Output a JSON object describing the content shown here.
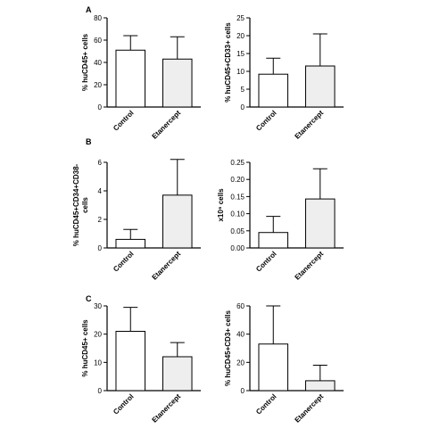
{
  "panel_letters": [
    "A",
    "B",
    "C"
  ],
  "chart_data": [
    {
      "type": "bar",
      "panel": "A",
      "categories": [
        "Control",
        "Etanercept"
      ],
      "values": [
        51,
        43
      ],
      "errors": [
        13,
        20
      ],
      "ylabel": "% huCD45+ cells",
      "ylim": [
        0,
        80
      ],
      "yticks": [
        "0",
        "20",
        "40",
        "60",
        "80"
      ],
      "fills": [
        "#ffffff",
        "#eeeeee"
      ]
    },
    {
      "type": "bar",
      "panel": "A",
      "categories": [
        "Control",
        "Etanercept"
      ],
      "values": [
        9.2,
        11.5
      ],
      "errors": [
        4.5,
        9
      ],
      "ylabel": "% huCD45+CD33+ cells",
      "ylim": [
        0,
        25
      ],
      "yticks": [
        "0",
        "5",
        "10",
        "15",
        "20",
        "25"
      ],
      "fills": [
        "#ffffff",
        "#eeeeee"
      ]
    },
    {
      "type": "bar",
      "panel": "B",
      "categories": [
        "Control",
        "Etanercept"
      ],
      "values": [
        0.6,
        3.7
      ],
      "errors": [
        0.7,
        2.5
      ],
      "ylabel": [
        "% huCD45+CD34+CD38-",
        "cells"
      ],
      "ylim": [
        0,
        6
      ],
      "yticks": [
        "0",
        "2",
        "4",
        "6"
      ],
      "fills": [
        "#ffffff",
        "#eeeeee"
      ]
    },
    {
      "type": "bar",
      "panel": "B",
      "categories": [
        "Control",
        "Etanercept"
      ],
      "values": [
        0.045,
        0.143
      ],
      "errors": [
        0.047,
        0.088
      ],
      "ylabel": "x10⁶ cells",
      "ylim": [
        0,
        0.25
      ],
      "yticks": [
        "0.00",
        "0.05",
        "0.10",
        "0.15",
        "0.20",
        "0.25"
      ],
      "fills": [
        "#ffffff",
        "#eeeeee"
      ]
    },
    {
      "type": "bar",
      "panel": "C",
      "categories": [
        "Control",
        "Etanercept"
      ],
      "values": [
        21,
        12
      ],
      "errors": [
        8.5,
        5
      ],
      "ylabel": "% huCD45+ cells",
      "ylim": [
        0,
        30
      ],
      "yticks": [
        "0",
        "10",
        "20",
        "30"
      ],
      "fills": [
        "#ffffff",
        "#eeeeee"
      ]
    },
    {
      "type": "bar",
      "panel": "C",
      "categories": [
        "Control",
        "Etanercept"
      ],
      "values": [
        33,
        7
      ],
      "errors": [
        27,
        11
      ],
      "ylabel": "% huCD45+CD3+ cells",
      "ylim": [
        0,
        60
      ],
      "yticks": [
        "0",
        "20",
        "40",
        "60"
      ],
      "fills": [
        "#ffffff",
        "#eeeeee"
      ]
    }
  ]
}
